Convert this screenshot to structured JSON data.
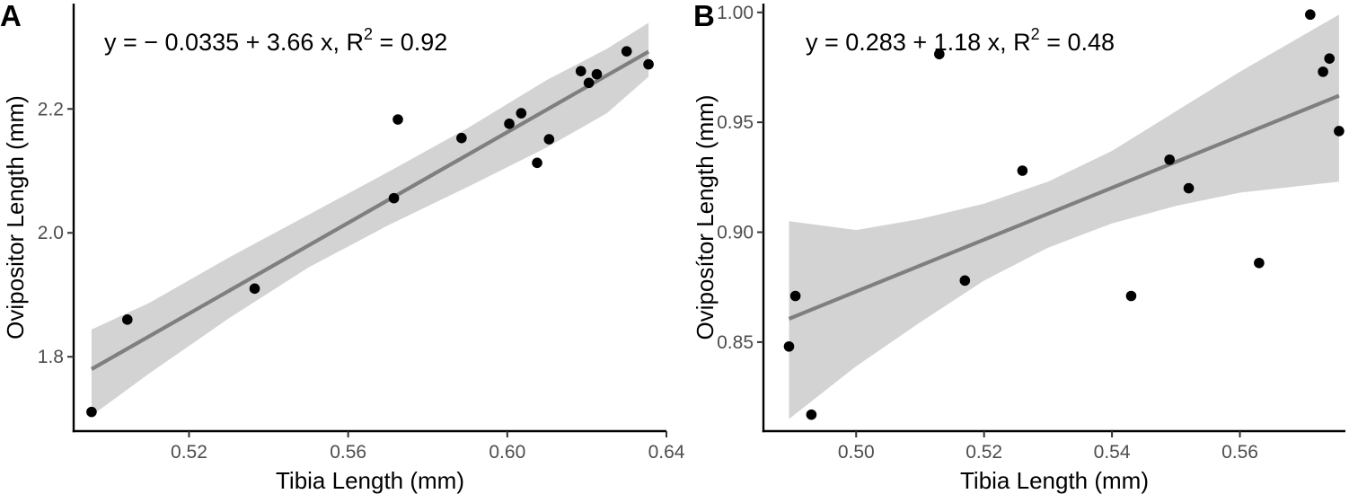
{
  "colors": {
    "points": "#000000",
    "fit_line": "#7f7f7f",
    "confidence_band": "#d3d3d3",
    "axis": "#000000",
    "tick_label": "#4d4d4d"
  },
  "chart_data": [
    {
      "panel": "A",
      "type": "scatter",
      "xlabel": "Tibia Length (mm)",
      "ylabel": "Ovipositor Length (mm)",
      "xlim": [
        0.491,
        0.64
      ],
      "ylim": [
        1.68,
        2.37
      ],
      "xticks": [
        0.52,
        0.56,
        0.6,
        0.64
      ],
      "xtick_labels": [
        "0.52",
        "0.56",
        "0.60",
        "0.64"
      ],
      "yticks": [
        1.8,
        2.0,
        2.2
      ],
      "ytick_labels": [
        "1.8",
        "2.0",
        "2.2"
      ],
      "grid": false,
      "legend": "none",
      "equation": {
        "prefix": "y = − 0.0335 + 3.66 x, R",
        "sup": "2",
        "suffix": " = 0.92"
      },
      "fit": {
        "intercept": -0.0335,
        "slope": 3.66,
        "r2": 0.92
      },
      "confidence_band": {
        "x": [
          0.4955,
          0.51,
          0.53,
          0.55,
          0.57,
          0.59,
          0.61,
          0.625,
          0.6355
        ],
        "lower": [
          1.705,
          1.773,
          1.862,
          1.944,
          2.012,
          2.074,
          2.138,
          2.193,
          2.252
        ],
        "upper": [
          1.844,
          1.887,
          1.96,
          2.029,
          2.098,
          2.169,
          2.247,
          2.297,
          2.339
        ]
      },
      "points": [
        {
          "x": 0.4955,
          "y": 1.711
        },
        {
          "x": 0.5045,
          "y": 1.86
        },
        {
          "x": 0.5365,
          "y": 1.91
        },
        {
          "x": 0.5715,
          "y": 2.056
        },
        {
          "x": 0.5725,
          "y": 2.183
        },
        {
          "x": 0.5885,
          "y": 2.153
        },
        {
          "x": 0.6005,
          "y": 2.176
        },
        {
          "x": 0.6035,
          "y": 2.193
        },
        {
          "x": 0.6075,
          "y": 2.113
        },
        {
          "x": 0.6105,
          "y": 2.151
        },
        {
          "x": 0.6185,
          "y": 2.261
        },
        {
          "x": 0.6205,
          "y": 2.242
        },
        {
          "x": 0.6225,
          "y": 2.256
        },
        {
          "x": 0.63,
          "y": 2.293
        },
        {
          "x": 0.6355,
          "y": 2.272
        }
      ]
    },
    {
      "panel": "B",
      "type": "scatter",
      "xlabel": "Tibia Length (mm)",
      "ylabel": "Oviposítor Length (mm)",
      "xlim": [
        0.4855,
        0.5765
      ],
      "ylim": [
        0.8095,
        1.004
      ],
      "xticks": [
        0.5,
        0.52,
        0.54,
        0.56
      ],
      "xtick_labels": [
        "0.50",
        "0.52",
        "0.54",
        "0.56"
      ],
      "yticks": [
        0.85,
        0.9,
        0.95,
        1.0
      ],
      "ytick_labels": [
        "0.85",
        "0.90",
        "0.95",
        "1.00"
      ],
      "grid": false,
      "legend": "none",
      "equation": {
        "prefix": "y = 0.283 + 1.18 x, R",
        "sup": "2",
        "suffix": " = 0.48"
      },
      "fit": {
        "intercept": 0.283,
        "slope": 1.18,
        "r2": 0.48
      },
      "confidence_band": {
        "x": [
          0.4895,
          0.5,
          0.51,
          0.52,
          0.53,
          0.54,
          0.55,
          0.56,
          0.5755
        ],
        "lower": [
          0.815,
          0.839,
          0.859,
          0.878,
          0.893,
          0.904,
          0.912,
          0.918,
          0.923
        ],
        "upper": [
          0.905,
          0.901,
          0.906,
          0.913,
          0.923,
          0.937,
          0.955,
          0.973,
          0.999
        ]
      },
      "points": [
        {
          "x": 0.4895,
          "y": 0.848
        },
        {
          "x": 0.4905,
          "y": 0.871
        },
        {
          "x": 0.493,
          "y": 0.817
        },
        {
          "x": 0.513,
          "y": 0.981
        },
        {
          "x": 0.517,
          "y": 0.878
        },
        {
          "x": 0.526,
          "y": 0.928
        },
        {
          "x": 0.543,
          "y": 0.871
        },
        {
          "x": 0.549,
          "y": 0.933
        },
        {
          "x": 0.552,
          "y": 0.92
        },
        {
          "x": 0.563,
          "y": 0.886
        },
        {
          "x": 0.571,
          "y": 0.999
        },
        {
          "x": 0.573,
          "y": 0.973
        },
        {
          "x": 0.574,
          "y": 0.979
        },
        {
          "x": 0.5755,
          "y": 0.946
        }
      ]
    }
  ]
}
